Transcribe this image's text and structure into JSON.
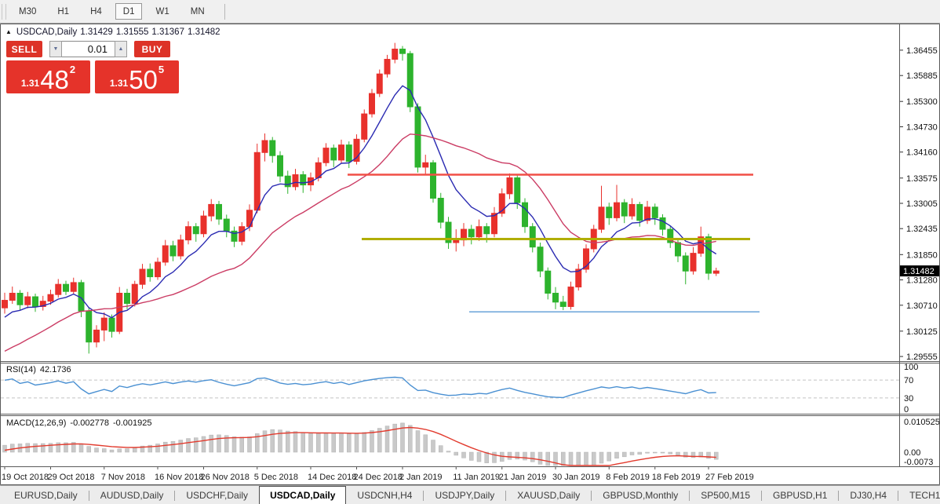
{
  "toolbar": {
    "timeframes": [
      {
        "label": "M30",
        "active": false
      },
      {
        "label": "H1",
        "active": false
      },
      {
        "label": "H4",
        "active": false
      },
      {
        "label": "D1",
        "active": true
      },
      {
        "label": "W1",
        "active": false
      },
      {
        "label": "MN",
        "active": false
      }
    ]
  },
  "icons": {
    "collapse_triangle": "▲",
    "spinner_down": "▼",
    "spinner_up": "▲",
    "scroll_left": "◄",
    "scroll_right": "►"
  },
  "chart_window": {
    "title": {
      "symbol": "USDCAD,Daily",
      "open": "1.31429",
      "high": "1.31555",
      "low": "1.31367",
      "close": "1.31482"
    },
    "trade_panel": {
      "sell_label": "SELL",
      "buy_label": "BUY",
      "volume": "0.01",
      "sell_price": {
        "small": "1.31",
        "big": "48",
        "sup": "2"
      },
      "buy_price": {
        "small": "1.31",
        "big": "50",
        "sup": "5"
      }
    }
  },
  "price_axis": {
    "ticks": [
      "1.36455",
      "1.35885",
      "1.35300",
      "1.34730",
      "1.34160",
      "1.33575",
      "1.33005",
      "1.32435",
      "1.31850",
      "1.31280",
      "1.30710",
      "1.30125",
      "1.29555"
    ],
    "current_price": "1.31482"
  },
  "x_axis": {
    "labels": [
      {
        "i": 0,
        "text": "19 Oct 2018"
      },
      {
        "i": 6,
        "text": "29 Oct 2018"
      },
      {
        "i": 13,
        "text": "7 Nov 2018"
      },
      {
        "i": 20,
        "text": "16 Nov 2018"
      },
      {
        "i": 26,
        "text": "26 Nov 2018"
      },
      {
        "i": 33,
        "text": "5 Dec 2018"
      },
      {
        "i": 40,
        "text": "14 Dec 2018"
      },
      {
        "i": 46,
        "text": "24 Dec 2018"
      },
      {
        "i": 52,
        "text": "2 Jan 2019"
      },
      {
        "i": 59,
        "text": "11 Jan 2019"
      },
      {
        "i": 65,
        "text": "21 Jan 2019"
      },
      {
        "i": 72,
        "text": "30 Jan 2019"
      },
      {
        "i": 79,
        "text": "8 Feb 2019"
      },
      {
        "i": 85,
        "text": "18 Feb 2019"
      },
      {
        "i": 92,
        "text": "27 Feb 2019"
      }
    ]
  },
  "indicators": {
    "rsi": {
      "label": "RSI(14)",
      "value": "42.1736",
      "period": 14,
      "scale": [
        "100",
        "70",
        "30",
        "0"
      ],
      "levels": [
        70,
        30
      ]
    },
    "macd": {
      "label": "MACD(12,26,9)",
      "value_main": "-0.002778",
      "value_signal": "-0.001925",
      "fast": 12,
      "slow": 26,
      "signal": 9,
      "scale": [
        "0.010525",
        "0.00",
        "-0.0073"
      ]
    }
  },
  "colors": {
    "candle_up": "#e8312c",
    "candle_down": "#2db32d",
    "ma_fast": "#2b2bb2",
    "ma_slow": "#cb3c64",
    "rsi_line": "#4a90d2",
    "rsi_level_dash": "#c4c4c4",
    "macd_signal": "#e23b2e",
    "macd_histogram": "#c9c9c9",
    "hline_red": "#f14f46",
    "hline_olive": "#b1ae00",
    "hline_blue": "#6aa3d8",
    "trade_red": "#e5332a",
    "price_tag_bg": "#000000",
    "price_tag_fg": "#ffffff",
    "axis_text": "#101010",
    "border": "#5a5a5a"
  },
  "chart_data": {
    "type": "candlestick",
    "symbol": "USDCAD",
    "timeframe": "Daily",
    "ylim": [
      1.2945,
      1.3702
    ],
    "ma_fast": {
      "type": "ema",
      "period": 8
    },
    "ma_slow": {
      "type": "sma",
      "period": 21
    },
    "h_lines": [
      {
        "name": "resistance-line-red",
        "price": 1.3365,
        "x_from": 443,
        "x_to": 960,
        "width": 2.5,
        "color_key": "hline_red"
      },
      {
        "name": "pivot-line-olive",
        "price": 1.322,
        "x_from": 461,
        "x_to": 956,
        "width": 3,
        "color_key": "hline_olive"
      },
      {
        "name": "support-line-blue",
        "price": 1.3056,
        "x_from": 598,
        "x_to": 968,
        "width": 1.5,
        "color_key": "hline_blue"
      }
    ],
    "prehistory_closes": [
      1.306,
      1.3042,
      1.3028,
      1.301,
      1.2995,
      1.298,
      1.2962,
      1.2948,
      1.2935,
      1.292,
      1.2908,
      1.2896,
      1.2888,
      1.2882,
      1.288,
      1.2886,
      1.2896,
      1.291,
      1.2926,
      1.2942,
      1.2958,
      1.2975,
      1.2992,
      1.3008,
      1.3022,
      1.3035,
      1.3046,
      1.3055,
      1.306,
      1.3065
    ],
    "candles": [
      [
        1.3065,
        1.3099,
        1.3052,
        1.3082
      ],
      [
        1.3082,
        1.3113,
        1.3074,
        1.3098
      ],
      [
        1.3098,
        1.3105,
        1.306,
        1.3072
      ],
      [
        1.3072,
        1.3101,
        1.3064,
        1.309
      ],
      [
        1.309,
        1.3097,
        1.3056,
        1.3068
      ],
      [
        1.3068,
        1.3092,
        1.3059,
        1.308
      ],
      [
        1.308,
        1.3106,
        1.3072,
        1.3095
      ],
      [
        1.3095,
        1.313,
        1.3088,
        1.3118
      ],
      [
        1.3118,
        1.3126,
        1.3094,
        1.3102
      ],
      [
        1.3102,
        1.3133,
        1.3095,
        1.3122
      ],
      [
        1.3122,
        1.3128,
        1.3044,
        1.3058
      ],
      [
        1.3058,
        1.3066,
        1.2962,
        1.2988
      ],
      [
        1.2988,
        1.3026,
        1.2976,
        1.3015
      ],
      [
        1.3015,
        1.3055,
        1.299,
        1.3042
      ],
      [
        1.3042,
        1.305,
        1.2998,
        1.3012
      ],
      [
        1.3012,
        1.3112,
        1.3006,
        1.3098
      ],
      [
        1.3098,
        1.3108,
        1.3062,
        1.3075
      ],
      [
        1.3075,
        1.3126,
        1.3068,
        1.3118
      ],
      [
        1.3118,
        1.3164,
        1.3108,
        1.3152
      ],
      [
        1.3152,
        1.3165,
        1.3124,
        1.3135
      ],
      [
        1.3135,
        1.3178,
        1.3128,
        1.3168
      ],
      [
        1.3168,
        1.3218,
        1.316,
        1.3205
      ],
      [
        1.3205,
        1.3216,
        1.317,
        1.3182
      ],
      [
        1.3182,
        1.323,
        1.3174,
        1.3218
      ],
      [
        1.3218,
        1.326,
        1.3208,
        1.3248
      ],
      [
        1.3248,
        1.3256,
        1.3214,
        1.3232
      ],
      [
        1.3232,
        1.3284,
        1.3224,
        1.3272
      ],
      [
        1.3272,
        1.331,
        1.326,
        1.3298
      ],
      [
        1.3298,
        1.3306,
        1.3252,
        1.3265
      ],
      [
        1.3265,
        1.3275,
        1.3224,
        1.3238
      ],
      [
        1.3238,
        1.3248,
        1.3202,
        1.3215
      ],
      [
        1.3215,
        1.3258,
        1.3206,
        1.3248
      ],
      [
        1.3248,
        1.3298,
        1.3238,
        1.3285
      ],
      [
        1.3285,
        1.3435,
        1.3278,
        1.3415
      ],
      [
        1.3415,
        1.3458,
        1.3395,
        1.3442
      ],
      [
        1.3442,
        1.345,
        1.3392,
        1.3408
      ],
      [
        1.3408,
        1.3418,
        1.3348,
        1.3362
      ],
      [
        1.3362,
        1.3374,
        1.3322,
        1.3338
      ],
      [
        1.3338,
        1.3378,
        1.333,
        1.3365
      ],
      [
        1.3365,
        1.3373,
        1.3324,
        1.3342
      ],
      [
        1.3342,
        1.337,
        1.3328,
        1.3358
      ],
      [
        1.3358,
        1.3404,
        1.335,
        1.3392
      ],
      [
        1.3392,
        1.3436,
        1.3384,
        1.3425
      ],
      [
        1.3425,
        1.3433,
        1.3382,
        1.3398
      ],
      [
        1.3398,
        1.3444,
        1.339,
        1.3432
      ],
      [
        1.3432,
        1.344,
        1.338,
        1.3395
      ],
      [
        1.3395,
        1.3456,
        1.3388,
        1.3445
      ],
      [
        1.3445,
        1.3512,
        1.3438,
        1.3502
      ],
      [
        1.3502,
        1.3558,
        1.3494,
        1.3548
      ],
      [
        1.3548,
        1.3602,
        1.354,
        1.3592
      ],
      [
        1.3592,
        1.3635,
        1.3584,
        1.3625
      ],
      [
        1.3625,
        1.3662,
        1.3616,
        1.3648
      ],
      [
        1.3648,
        1.3655,
        1.3622,
        1.3638
      ],
      [
        1.3638,
        1.3644,
        1.3506,
        1.3518
      ],
      [
        1.3518,
        1.3526,
        1.337,
        1.3382
      ],
      [
        1.3382,
        1.341,
        1.3364,
        1.3392
      ],
      [
        1.3392,
        1.3398,
        1.3302,
        1.3312
      ],
      [
        1.3312,
        1.3324,
        1.3244,
        1.3258
      ],
      [
        1.3258,
        1.327,
        1.3198,
        1.3212
      ],
      [
        1.3212,
        1.3242,
        1.3192,
        1.3218
      ],
      [
        1.3218,
        1.3256,
        1.3204,
        1.3242
      ],
      [
        1.3242,
        1.3252,
        1.3208,
        1.3225
      ],
      [
        1.3225,
        1.3264,
        1.3216,
        1.3248
      ],
      [
        1.3248,
        1.3256,
        1.3212,
        1.3232
      ],
      [
        1.3232,
        1.3292,
        1.3224,
        1.3278
      ],
      [
        1.3278,
        1.3334,
        1.327,
        1.3322
      ],
      [
        1.3322,
        1.3368,
        1.331,
        1.3358
      ],
      [
        1.3358,
        1.3364,
        1.3288,
        1.3302
      ],
      [
        1.3302,
        1.3312,
        1.3234,
        1.3248
      ],
      [
        1.3248,
        1.3256,
        1.319,
        1.3202
      ],
      [
        1.3202,
        1.3212,
        1.3134,
        1.3148
      ],
      [
        1.3148,
        1.3156,
        1.3084,
        1.3098
      ],
      [
        1.3098,
        1.3112,
        1.3062,
        1.3078
      ],
      [
        1.3078,
        1.3092,
        1.306,
        1.3068
      ],
      [
        1.3068,
        1.3124,
        1.3061,
        1.3112
      ],
      [
        1.3112,
        1.3164,
        1.3104,
        1.3152
      ],
      [
        1.3152,
        1.3208,
        1.3144,
        1.3198
      ],
      [
        1.3198,
        1.3252,
        1.319,
        1.3242
      ],
      [
        1.3242,
        1.334,
        1.3234,
        1.3292
      ],
      [
        1.3292,
        1.3302,
        1.3252,
        1.3268
      ],
      [
        1.3268,
        1.3342,
        1.326,
        1.3302
      ],
      [
        1.3302,
        1.331,
        1.3256,
        1.3272
      ],
      [
        1.3272,
        1.3312,
        1.3264,
        1.3298
      ],
      [
        1.3298,
        1.3304,
        1.3248,
        1.3262
      ],
      [
        1.3262,
        1.3306,
        1.3254,
        1.3292
      ],
      [
        1.3292,
        1.33,
        1.3252,
        1.3268
      ],
      [
        1.3268,
        1.3276,
        1.3228,
        1.3242
      ],
      [
        1.3242,
        1.325,
        1.32,
        1.3212
      ],
      [
        1.3212,
        1.322,
        1.3168,
        1.3182
      ],
      [
        1.3182,
        1.319,
        1.3118,
        1.3148
      ],
      [
        1.3148,
        1.3202,
        1.314,
        1.3188
      ],
      [
        1.3188,
        1.3248,
        1.318,
        1.3225
      ],
      [
        1.3225,
        1.3232,
        1.3128,
        1.3143
      ],
      [
        1.31429,
        1.31555,
        1.31367,
        1.31482
      ]
    ]
  },
  "bottom_tabs": {
    "tabs": [
      {
        "label": "EURUSD,Daily",
        "active": false
      },
      {
        "label": "AUDUSD,Daily",
        "active": false
      },
      {
        "label": "USDCHF,Daily",
        "active": false
      },
      {
        "label": "USDCAD,Daily",
        "active": true
      },
      {
        "label": "USDCNH,H4",
        "active": false
      },
      {
        "label": "USDJPY,Daily",
        "active": false
      },
      {
        "label": "XAUUSD,Daily",
        "active": false
      },
      {
        "label": "GBPUSD,Monthly",
        "active": false
      },
      {
        "label": "SP500,M15",
        "active": false
      },
      {
        "label": "GBPUSD,H1",
        "active": false
      },
      {
        "label": "DJ30,H4",
        "active": false
      },
      {
        "label": "TECH100,H1",
        "active": false
      }
    ]
  }
}
